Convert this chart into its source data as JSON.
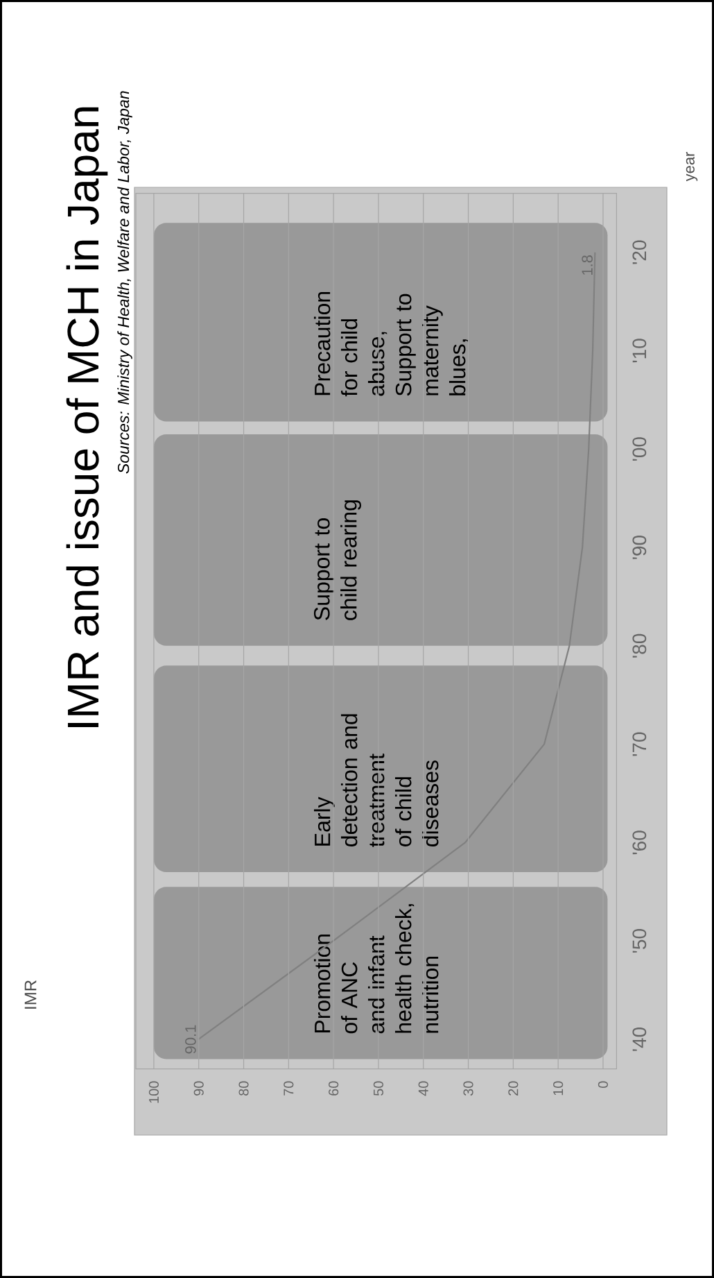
{
  "chart_data": {
    "type": "line",
    "title": "IMR and issue of MCH in Japan",
    "ylabel": "year",
    "series": [
      {
        "color": "#808080",
        "x": [
          90.1,
          60.1,
          30.7,
          13.1,
          7.5,
          4.6,
          3.2,
          2.3,
          1.8
        ],
        "values": [
          1940,
          1950,
          1960,
          1970,
          1980,
          1990,
          2000,
          2010,
          2020
        ]
      }
    ],
    "xlim": [
      104,
      -3
    ],
    "ylim": [
      1937,
      2026
    ],
    "xticks": [
      100,
      90,
      80,
      70,
      60,
      50,
      40,
      30,
      20,
      10,
      0
    ],
    "yticks": [
      {
        "value": 1940,
        "label": "'40"
      },
      {
        "value": 1950,
        "label": "'50"
      },
      {
        "value": 1960,
        "label": "'60"
      },
      {
        "value": 1970,
        "label": "'70"
      },
      {
        "value": 1980,
        "label": "'80"
      },
      {
        "value": 1990,
        "label": "'90"
      },
      {
        "value": 2000,
        "label": "'00"
      },
      {
        "value": 2010,
        "label": "'10"
      },
      {
        "value": 2020,
        "label": "'20"
      }
    ],
    "grid": "x",
    "marker": "none",
    "line_style": "solid",
    "bands": [
      {
        "axis": "y",
        "from": 1938,
        "to": 1955.5,
        "label": "Promotion of ANC and infant health check, nutrition",
        "color": "#999999"
      },
      {
        "axis": "y",
        "from": 1957,
        "to": 1978,
        "label": "Early detection and treatment of child diseases",
        "color": "#999999"
      },
      {
        "axis": "y",
        "from": 1980,
        "to": 2001.5,
        "label": "Support to child rearing",
        "color": "#999999"
      },
      {
        "axis": "y",
        "from": 2002.8,
        "to": 2023,
        "label": "Precaution for child abuse, Support to maternity blues,",
        "color": "#999999"
      }
    ],
    "annotations": [
      "Sources: Ministry of Health, Welfare and Labor, Japan",
      "IMR",
      {
        "text": "90.1",
        "x": 90.1,
        "y": 1940
      },
      {
        "text": "1.8",
        "x": 1.8,
        "y": 2020
      }
    ]
  }
}
